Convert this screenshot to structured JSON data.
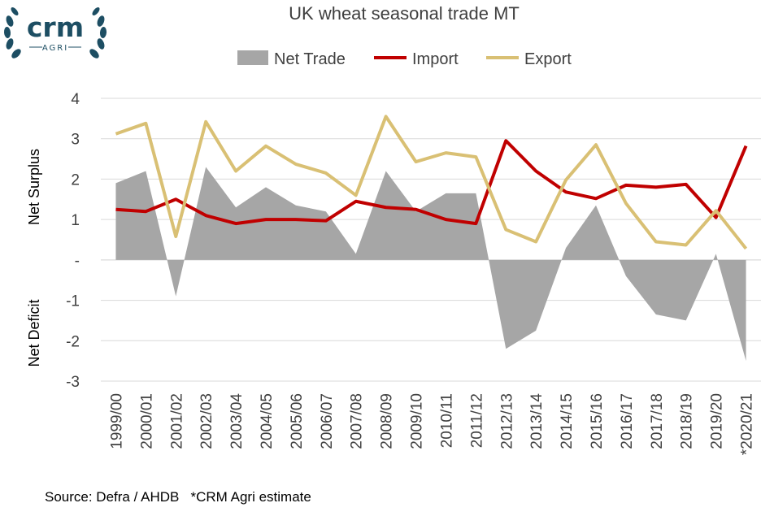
{
  "logo": {
    "main_text": "crm",
    "sub_text": "AGRI",
    "color": "#1d4e63"
  },
  "source_note": "Source: Defra / AHDB   *CRM Agri estimate",
  "chart_data": {
    "type": "line",
    "title": "UK wheat seasonal trade MT",
    "ylabel_upper": "Net Surplus",
    "ylabel_lower": "Net Deficit",
    "ylim": [
      -3,
      4
    ],
    "yticks": [
      4,
      3,
      2,
      1,
      0,
      -1,
      -2,
      -3
    ],
    "ytick_labels": [
      "4",
      "3",
      "2",
      "1",
      "-",
      "-1",
      "-2",
      "-3"
    ],
    "grid": true,
    "legend_position": "top",
    "categories": [
      "1999/00",
      "2000/01",
      "2001/02",
      "2002/03",
      "2003/04",
      "2004/05",
      "2005/06",
      "2006/07",
      "2007/08",
      "2008/09",
      "2009/10",
      "2010/11",
      "2011/12",
      "2012/13",
      "2013/14",
      "2014/15",
      "2015/16",
      "2016/17",
      "2017/18",
      "2018/19",
      "2019/20",
      "*2020/21"
    ],
    "series": [
      {
        "name": "Net Trade",
        "kind": "area",
        "color": "#a6a6a6",
        "values": [
          1.9,
          2.2,
          -0.9,
          2.3,
          1.3,
          1.8,
          1.35,
          1.2,
          0.15,
          2.2,
          1.2,
          1.65,
          1.65,
          -2.2,
          -1.75,
          0.3,
          1.35,
          -0.4,
          -1.35,
          -1.5,
          0.15,
          -2.5
        ]
      },
      {
        "name": "Import",
        "kind": "line",
        "color": "#c00000",
        "values": [
          1.25,
          1.2,
          1.5,
          1.1,
          0.9,
          1.0,
          1.0,
          0.97,
          1.45,
          1.3,
          1.25,
          1.0,
          0.9,
          2.95,
          2.2,
          1.68,
          1.52,
          1.85,
          1.8,
          1.87,
          1.05,
          2.82
        ]
      },
      {
        "name": "Export",
        "kind": "line",
        "color": "#d9c074",
        "values": [
          3.12,
          3.38,
          0.58,
          3.42,
          2.2,
          2.82,
          2.37,
          2.15,
          1.6,
          3.55,
          2.43,
          2.65,
          2.55,
          0.75,
          0.45,
          1.98,
          2.85,
          1.4,
          0.45,
          0.37,
          1.22,
          0.28
        ]
      }
    ]
  }
}
